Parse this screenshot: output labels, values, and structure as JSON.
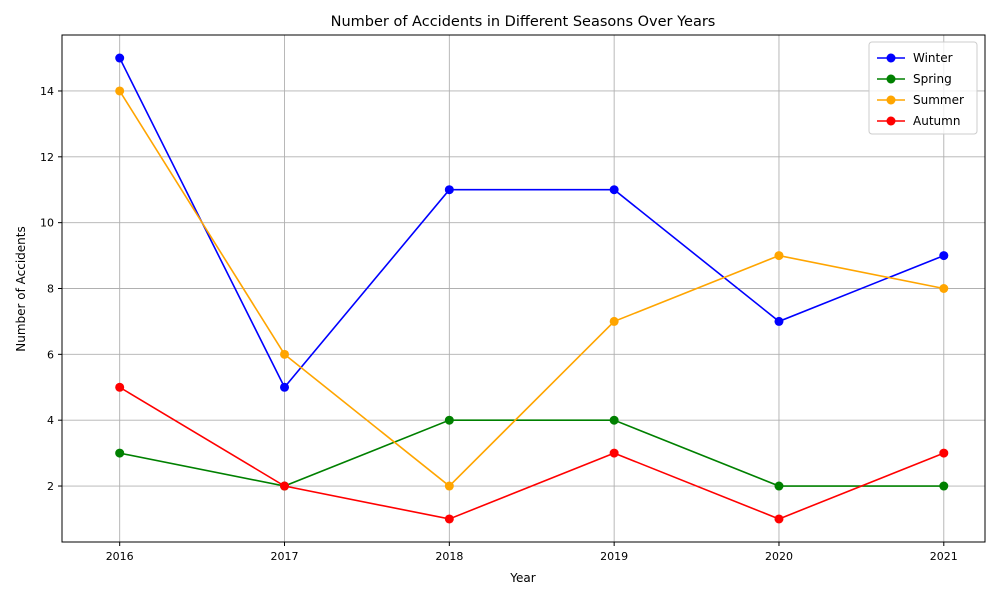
{
  "chart_data": {
    "type": "line",
    "title": "Number of Accidents in Different Seasons Over Years",
    "xlabel": "Year",
    "ylabel": "Number of Accidents",
    "x": [
      2016,
      2017,
      2018,
      2019,
      2020,
      2021
    ],
    "xlim": [
      2015.65,
      2021.25
    ],
    "ylim": [
      0.3,
      15.7
    ],
    "yticks": [
      2,
      4,
      6,
      8,
      10,
      12,
      14
    ],
    "grid": true,
    "legend_position": "top-right",
    "marker": "circle",
    "series": [
      {
        "name": "Winter",
        "color": "#0000ff",
        "values": [
          15,
          5,
          11,
          11,
          7,
          9
        ]
      },
      {
        "name": "Spring",
        "color": "#008000",
        "values": [
          3,
          2,
          4,
          4,
          2,
          2
        ]
      },
      {
        "name": "Summer",
        "color": "#ffa500",
        "values": [
          14,
          6,
          2,
          7,
          9,
          8
        ]
      },
      {
        "name": "Autumn",
        "color": "#ff0000",
        "values": [
          5,
          2,
          1,
          3,
          1,
          3
        ]
      }
    ]
  }
}
